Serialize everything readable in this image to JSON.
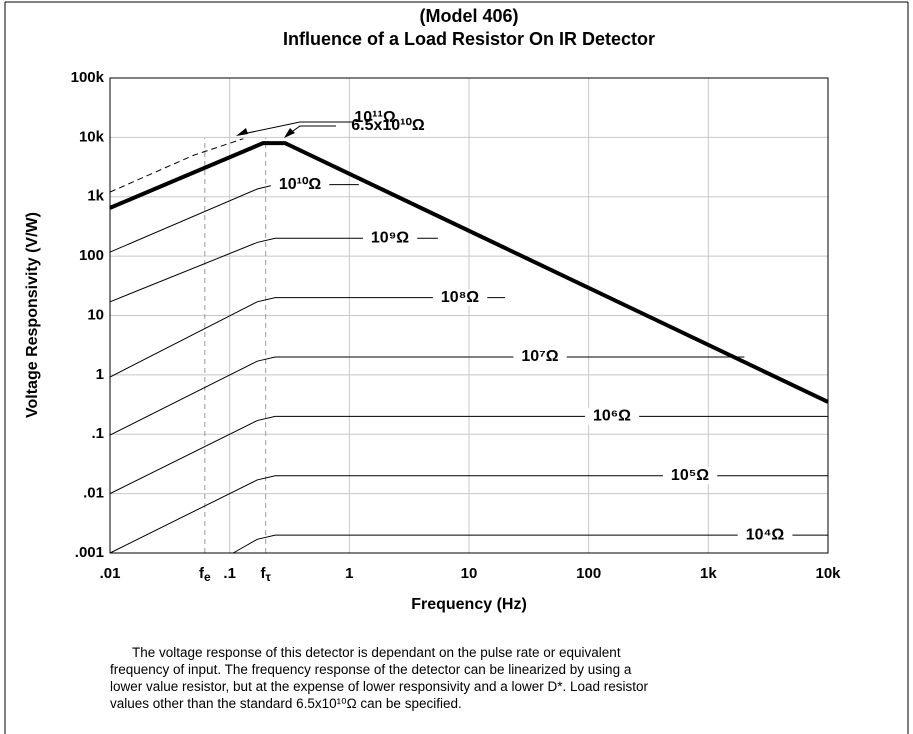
{
  "chart_data": {
    "type": "line",
    "title": "(Model  406)",
    "subtitle": "Influence of a Load Resistor On IR Detector",
    "x_label": "Frequency (Hz)",
    "y_label": "Voltage Responsivity (V/W)",
    "log_x": true,
    "log_y": true,
    "grid": true,
    "xlim": [
      0.01,
      10000
    ],
    "ylim": [
      0.001,
      100000
    ],
    "xticks": [
      {
        "value": 0.01,
        "label": ".01"
      },
      {
        "value": 0.062,
        "label": "f",
        "sub": "e"
      },
      {
        "value": 0.1,
        "label": ".1"
      },
      {
        "value": 0.2,
        "label": "f",
        "sub": "τ"
      },
      1,
      10,
      100,
      {
        "value": 1000,
        "label": "1k"
      },
      {
        "value": 10000,
        "label": "10k"
      }
    ],
    "yticks": [
      {
        "value": 0.001,
        "label": ".001"
      },
      {
        "value": 0.01,
        "label": ".01"
      },
      {
        "value": 0.1,
        "label": ".1"
      },
      1,
      10,
      100,
      {
        "value": 1000,
        "label": "1k"
      },
      {
        "value": 10000,
        "label": "10k"
      },
      {
        "value": 100000,
        "label": "100k"
      }
    ],
    "series": [
      {
        "name": "10¹¹Ω",
        "color": "#000000",
        "style": "dashed",
        "x": [
          0.01,
          0.05,
          0.13
        ],
        "values": [
          1200,
          5000,
          9500
        ]
      },
      {
        "name": "6.5x10¹⁰Ω",
        "color": "#000000",
        "style": "thick",
        "x": [
          0.01,
          0.19,
          0.29,
          10000
        ],
        "values": [
          650,
          8000,
          8000,
          0.35
        ]
      },
      {
        "name": "10¹⁰Ω",
        "color": "#000000",
        "x": [
          0.01,
          0.17,
          0.24,
          1.2
        ],
        "values": [
          117,
          1350,
          1600,
          1600
        ]
      },
      {
        "name": "10⁹Ω",
        "color": "#000000",
        "x": [
          0.01,
          0.17,
          0.24,
          5.5
        ],
        "values": [
          17,
          170,
          200,
          200
        ]
      },
      {
        "name": "10⁸Ω",
        "color": "#000000",
        "x": [
          0.01,
          0.17,
          0.24,
          20
        ],
        "values": [
          0.92,
          17,
          20,
          20
        ]
      },
      {
        "name": "10⁷Ω",
        "color": "#000000",
        "x": [
          0.01,
          0.17,
          0.24,
          2000
        ],
        "values": [
          0.097,
          1.7,
          2,
          2
        ]
      },
      {
        "name": "10⁶Ω",
        "color": "#000000",
        "x": [
          0.01,
          0.17,
          0.24,
          10000
        ],
        "values": [
          0.01,
          0.17,
          0.2,
          0.2
        ]
      },
      {
        "name": "10⁵Ω",
        "color": "#000000",
        "x": [
          0.01,
          0.17,
          0.24,
          10000
        ],
        "values": [
          0.001,
          0.017,
          0.02,
          0.02
        ]
      },
      {
        "name": "10⁴Ω",
        "color": "#000000",
        "x": [
          0.107,
          0.17,
          0.24,
          10000
        ],
        "values": [
          0.001,
          0.0017,
          0.002,
          0.002
        ]
      }
    ]
  },
  "caption": [
    "The voltage response of this detector is dependant on the pulse rate or equivalent",
    "frequency of input.  The frequency response of the detector can be linearized by using a",
    "lower value resistor, but at the expense of lower responsivity and a lower D*.  Load resistor",
    "values other than the standard 6.5x10¹⁰Ω can be specified."
  ]
}
